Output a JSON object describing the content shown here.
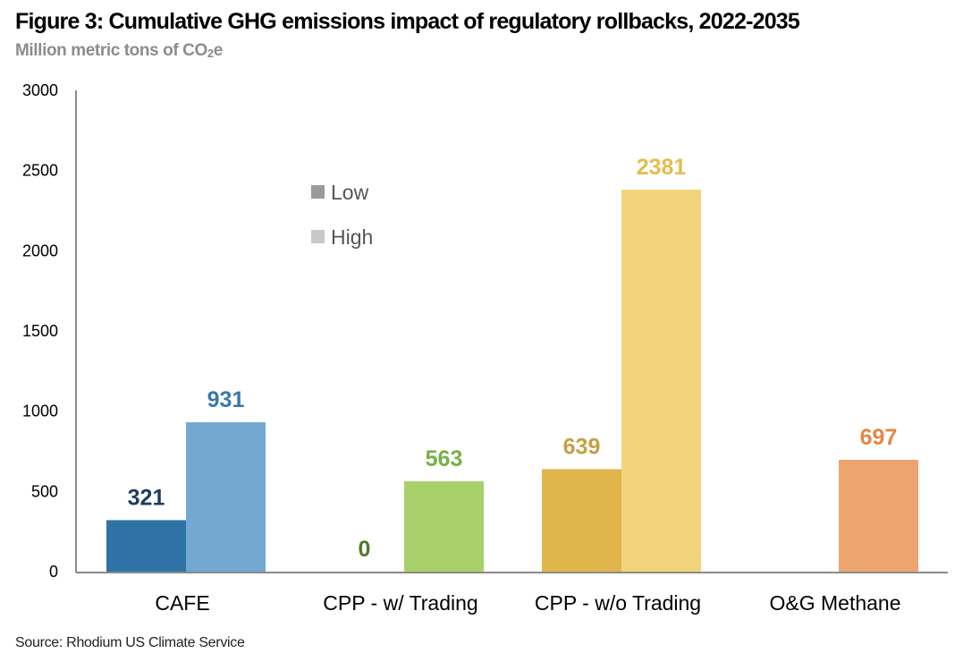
{
  "header": {
    "title": "Figure 3: Cumulative GHG emissions impact of regulatory rollbacks, 2022-2035",
    "subtitle_prefix": "Million metric tons of CO",
    "subtitle_sub": "2",
    "subtitle_suffix": "e"
  },
  "footer": {
    "source": "Source: Rhodium US Climate Service"
  },
  "chart_data": {
    "type": "bar",
    "title": "Figure 3: Cumulative GHG emissions impact of regulatory rollbacks, 2022-2035",
    "ylabel": "Million metric tons of CO2e",
    "xlabel": "",
    "ylim": [
      0,
      3000
    ],
    "yticks": [
      0,
      500,
      1000,
      1500,
      2000,
      2500,
      3000
    ],
    "grid": false,
    "legend_position": "upper-left (inside plot)",
    "legend": [
      {
        "name": "Low",
        "color": "#9a9a9a"
      },
      {
        "name": "High",
        "color": "#c8c8c8"
      }
    ],
    "categories": [
      "CAFE",
      "CPP - w/ Trading",
      "CPP - w/o Trading",
      "O&G Methane"
    ],
    "series": [
      {
        "name": "Low",
        "values": [
          321,
          0,
          639,
          null
        ]
      },
      {
        "name": "High",
        "values": [
          931,
          563,
          2381,
          697
        ]
      }
    ],
    "data_labels": [
      [
        "321",
        "931"
      ],
      [
        "0",
        "563"
      ],
      [
        "639",
        "2381"
      ],
      [
        null,
        "697"
      ]
    ],
    "colors": {
      "low": [
        "#2f73a6",
        null,
        "#e0b64c",
        null
      ],
      "high": [
        "#72a8d2",
        "#a8d16b",
        "#f2d47e",
        "#eda570"
      ],
      "label_low": [
        "#1b3d5e",
        "#4e7a25",
        "#c5a042",
        null
      ],
      "label_high": [
        "#3978ad",
        "#76b043",
        "#e5bc4d",
        "#e38645"
      ]
    }
  }
}
